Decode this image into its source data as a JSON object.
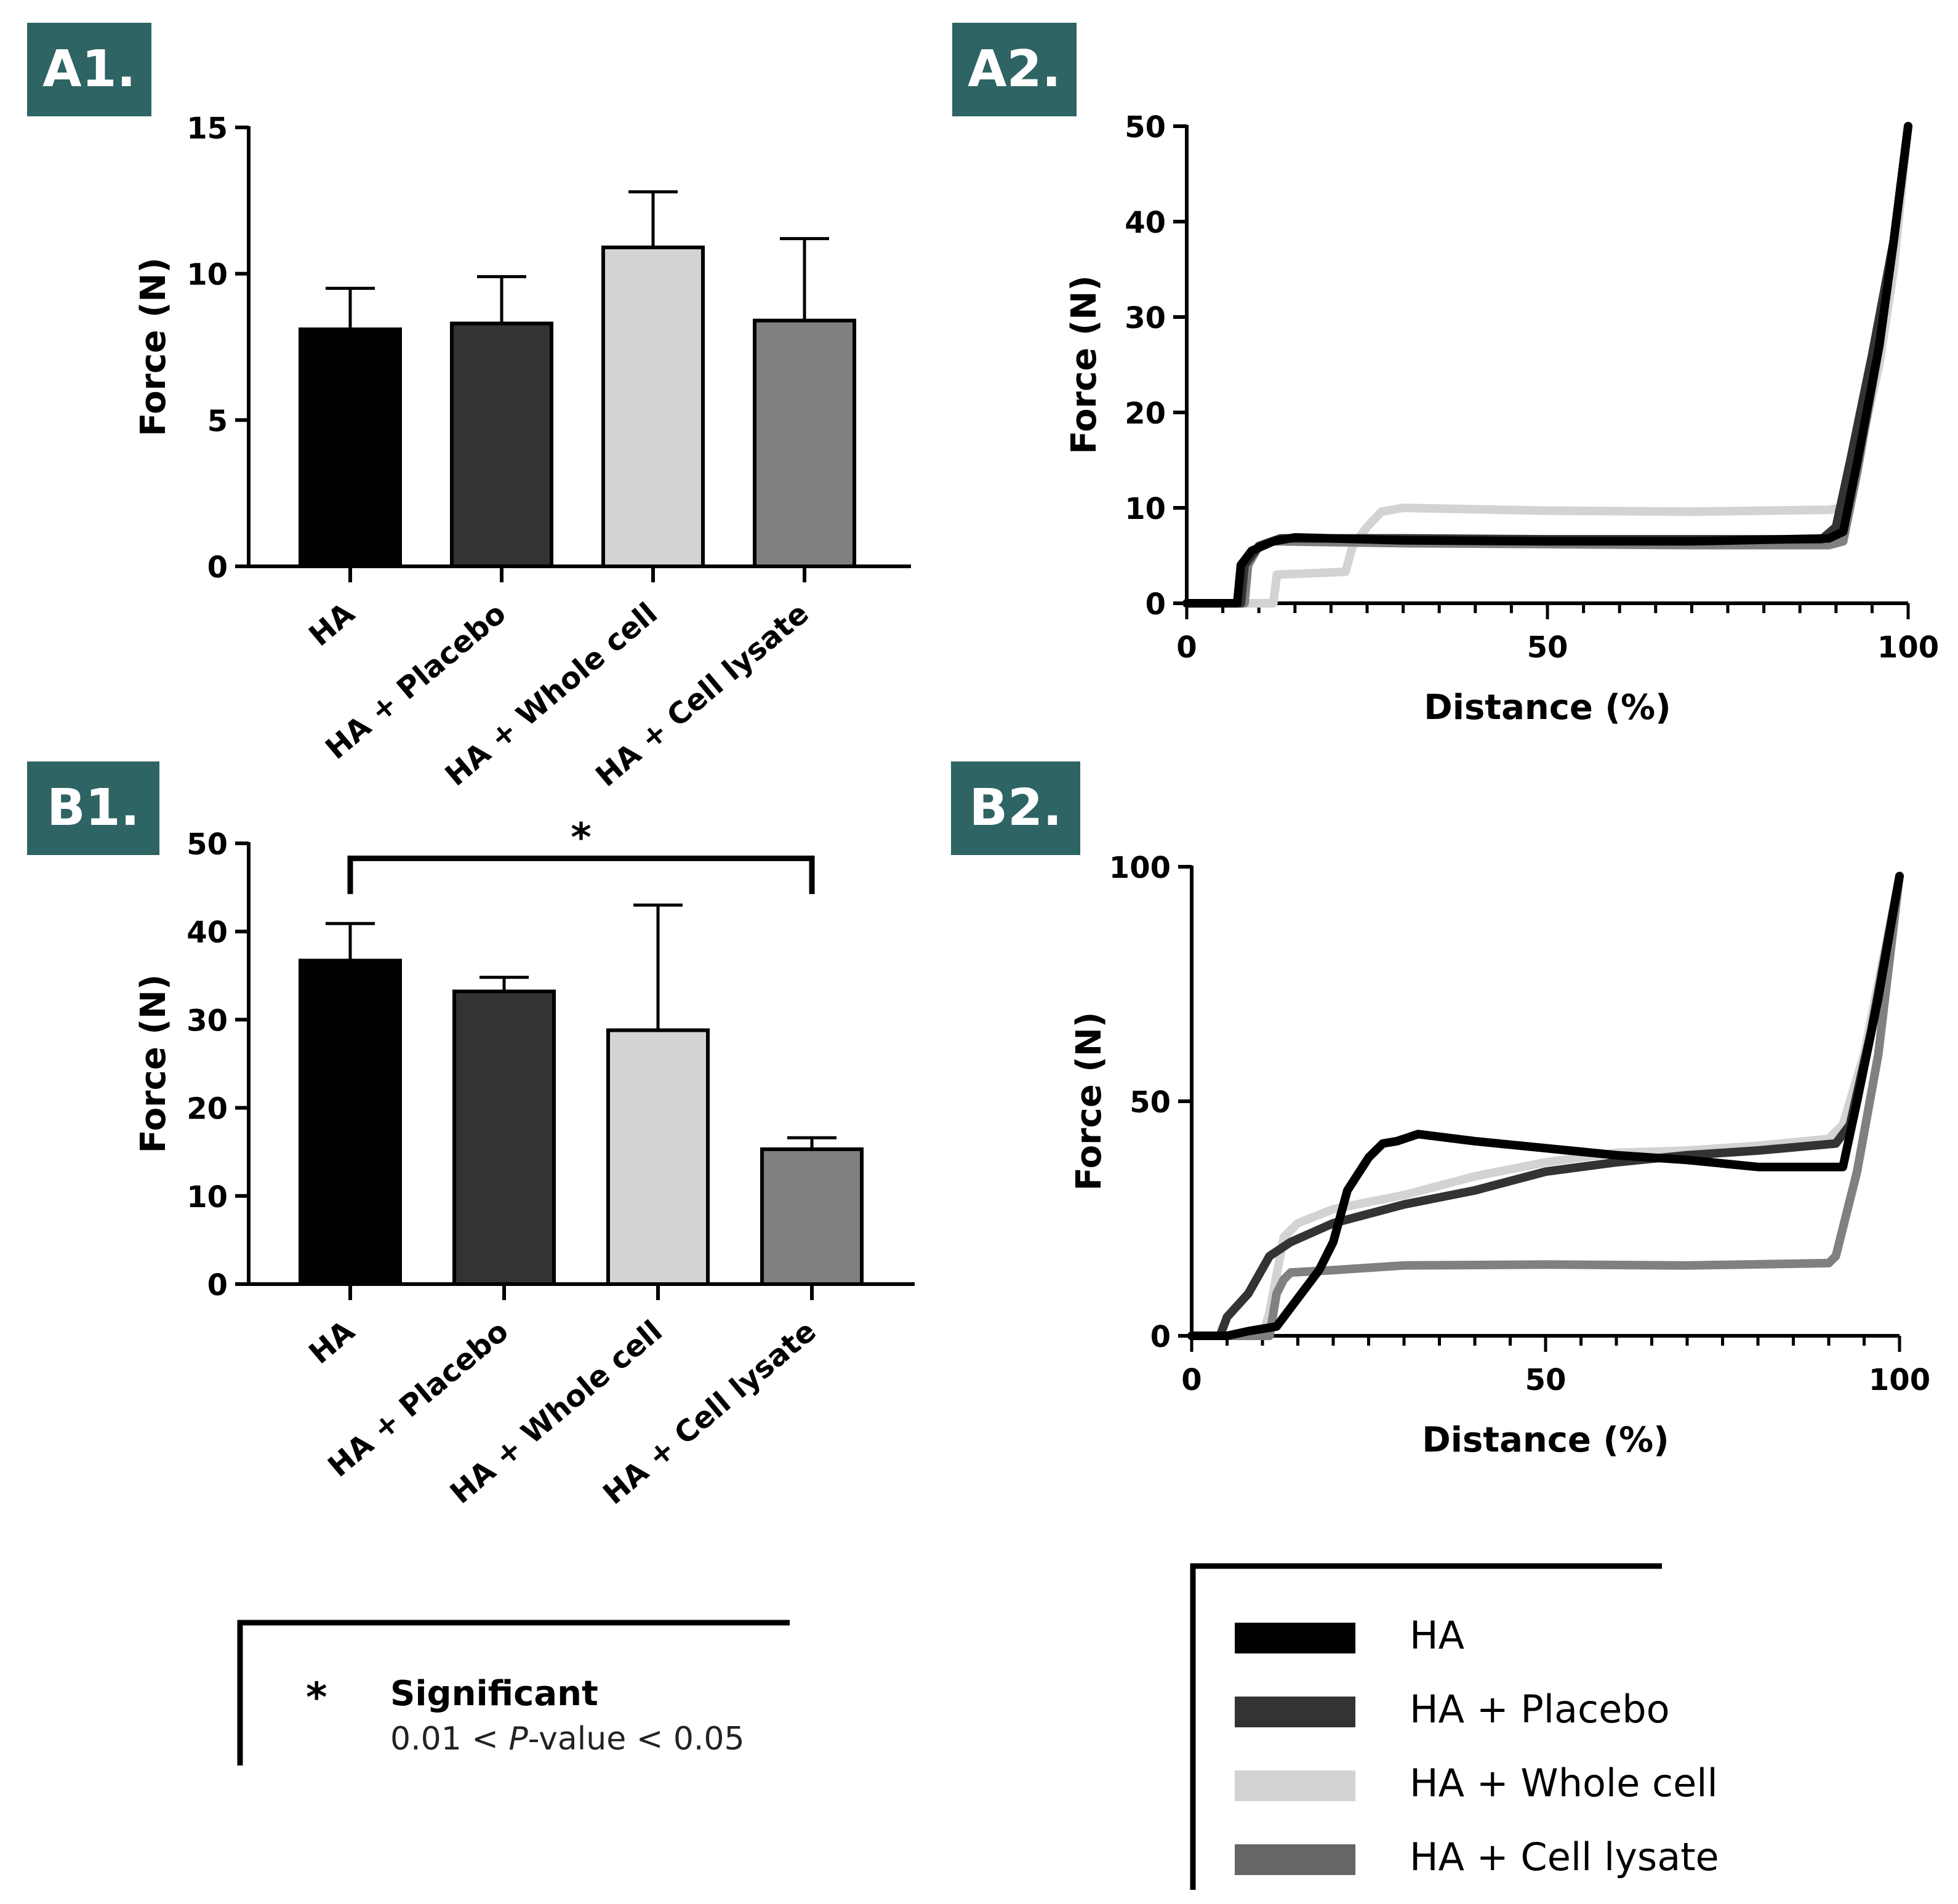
{
  "colors": {
    "tag_bg": "#2e6463",
    "HA": "#000000",
    "HA_placebo": "#333333",
    "HA_whole_cell": "#d3d3d3",
    "HA_cell_lysate": "#808080"
  },
  "panels": {
    "a1": {
      "tag": "A1."
    },
    "a2": {
      "tag": "A2."
    },
    "b1": {
      "tag": "B1."
    },
    "b2": {
      "tag": "B2."
    }
  },
  "chart_data": [
    {
      "id": "a1",
      "type": "bar",
      "title": "",
      "ylabel": "Force (N)",
      "xlabel": "",
      "ylim": [
        0,
        15
      ],
      "yticks": [
        0,
        5,
        10,
        15
      ],
      "categories": [
        "HA",
        "HA + Placebo",
        "HA + Whole cell",
        "HA + Cell lysate"
      ],
      "values": [
        8.1,
        8.3,
        10.9,
        8.4
      ],
      "errors": [
        1.4,
        1.6,
        1.9,
        2.8
      ],
      "bar_colors": [
        "#000000",
        "#333333",
        "#d3d3d3",
        "#808080"
      ]
    },
    {
      "id": "a2",
      "type": "line",
      "xlabel": "Distance (%)",
      "ylabel": "Force (N)",
      "xlim": [
        0,
        100
      ],
      "ylim": [
        0,
        50
      ],
      "xticks": [
        0,
        50,
        100
      ],
      "yticks": [
        0,
        10,
        20,
        30,
        40,
        50
      ],
      "series": [
        {
          "name": "HA + Whole cell",
          "color": "#d3d3d3",
          "points": [
            [
              0,
              0
            ],
            [
              12,
              0
            ],
            [
              12.5,
              3
            ],
            [
              22,
              3.3
            ],
            [
              23,
              6
            ],
            [
              25,
              8
            ],
            [
              27,
              9.6
            ],
            [
              30,
              10
            ],
            [
              50,
              9.7
            ],
            [
              70,
              9.6
            ],
            [
              89,
              9.8
            ],
            [
              91,
              10
            ],
            [
              93,
              15
            ],
            [
              96,
              25
            ],
            [
              98,
              35
            ],
            [
              100,
              50
            ]
          ]
        },
        {
          "name": "HA + Cell lysate",
          "color": "#808080",
          "points": [
            [
              0,
              0
            ],
            [
              8,
              0
            ],
            [
              8.5,
              4
            ],
            [
              10,
              6
            ],
            [
              12,
              6.5
            ],
            [
              30,
              6.3
            ],
            [
              50,
              6.2
            ],
            [
              70,
              6.1
            ],
            [
              89,
              6.1
            ],
            [
              91,
              6.5
            ],
            [
              93,
              14
            ],
            [
              96,
              27
            ],
            [
              98,
              38
            ],
            [
              100,
              50
            ]
          ]
        },
        {
          "name": "HA + Placebo",
          "color": "#333333",
          "points": [
            [
              0,
              0
            ],
            [
              7.5,
              0
            ],
            [
              8,
              4
            ],
            [
              10,
              6
            ],
            [
              13,
              6.8
            ],
            [
              30,
              6.8
            ],
            [
              50,
              6.7
            ],
            [
              70,
              6.7
            ],
            [
              88,
              6.7
            ],
            [
              90,
              8
            ],
            [
              92,
              15
            ],
            [
              95,
              26
            ],
            [
              98,
              38
            ],
            [
              100,
              50
            ]
          ]
        },
        {
          "name": "HA",
          "color": "#000000",
          "points": [
            [
              0,
              0
            ],
            [
              7,
              0
            ],
            [
              7.5,
              4
            ],
            [
              9,
              5.5
            ],
            [
              12,
              6.5
            ],
            [
              15,
              6.9
            ],
            [
              30,
              6.6
            ],
            [
              50,
              6.5
            ],
            [
              70,
              6.5
            ],
            [
              89,
              6.8
            ],
            [
              91,
              7.5
            ],
            [
              93,
              15
            ],
            [
              96,
              27
            ],
            [
              98,
              38
            ],
            [
              100,
              50
            ]
          ]
        }
      ]
    },
    {
      "id": "b1",
      "type": "bar",
      "title": "",
      "ylabel": "Force (N)",
      "xlabel": "",
      "ylim": [
        0,
        50
      ],
      "yticks": [
        0,
        10,
        20,
        30,
        40,
        50
      ],
      "categories": [
        "HA",
        "HA + Placebo",
        "HA + Whole cell",
        "HA + Cell lysate"
      ],
      "values": [
        36.7,
        33.2,
        28.8,
        15.3
      ],
      "errors": [
        4.2,
        1.6,
        14.2,
        1.3
      ],
      "bar_colors": [
        "#000000",
        "#333333",
        "#d3d3d3",
        "#808080"
      ],
      "significance": {
        "from": 0,
        "to": 3,
        "label": "*",
        "at": 48.3
      }
    },
    {
      "id": "b2",
      "type": "line",
      "xlabel": "Distance (%)",
      "ylabel": "Force (N)",
      "xlim": [
        0,
        100
      ],
      "ylim": [
        0,
        100
      ],
      "xticks": [
        0,
        50,
        100
      ],
      "yticks": [
        0,
        50,
        100
      ],
      "series": [
        {
          "name": "HA + Whole cell",
          "color": "#d3d3d3",
          "points": [
            [
              0,
              0
            ],
            [
              10,
              0
            ],
            [
              11,
              5
            ],
            [
              13,
              21
            ],
            [
              15,
              24
            ],
            [
              20,
              27
            ],
            [
              30,
              30
            ],
            [
              40,
              34
            ],
            [
              50,
              37
            ],
            [
              60,
              39
            ],
            [
              70,
              39.5
            ],
            [
              80,
              40.5
            ],
            [
              90,
              42
            ],
            [
              92,
              45
            ],
            [
              95,
              60
            ],
            [
              100,
              98
            ]
          ]
        },
        {
          "name": "HA + Placebo",
          "color": "#333333",
          "points": [
            [
              0,
              0
            ],
            [
              4,
              0
            ],
            [
              5,
              4
            ],
            [
              8,
              9
            ],
            [
              11,
              17
            ],
            [
              14,
              20
            ],
            [
              20,
              24
            ],
            [
              30,
              28
            ],
            [
              40,
              31
            ],
            [
              50,
              35
            ],
            [
              60,
              37
            ],
            [
              70,
              38.5
            ],
            [
              80,
              39.5
            ],
            [
              91,
              41
            ],
            [
              93,
              45
            ],
            [
              96,
              65
            ],
            [
              100,
              98
            ]
          ]
        },
        {
          "name": "HA + Cell lysate",
          "color": "#808080",
          "points": [
            [
              0,
              0
            ],
            [
              11,
              0
            ],
            [
              12,
              9
            ],
            [
              13,
              12
            ],
            [
              14,
              13.5
            ],
            [
              20,
              14
            ],
            [
              30,
              15
            ],
            [
              50,
              15.2
            ],
            [
              70,
              15
            ],
            [
              90,
              15.5
            ],
            [
              91,
              17
            ],
            [
              94,
              35
            ],
            [
              97,
              60
            ],
            [
              100,
              98
            ]
          ]
        },
        {
          "name": "HA",
          "color": "#000000",
          "points": [
            [
              0,
              0
            ],
            [
              5,
              0
            ],
            [
              8,
              1
            ],
            [
              12,
              2
            ],
            [
              15,
              8
            ],
            [
              18,
              14
            ],
            [
              20,
              20
            ],
            [
              22,
              31
            ],
            [
              25,
              38
            ],
            [
              27,
              41
            ],
            [
              29,
              41.5
            ],
            [
              32,
              43
            ],
            [
              40,
              41.5
            ],
            [
              50,
              40
            ],
            [
              60,
              38.5
            ],
            [
              70,
              37.5
            ],
            [
              80,
              36
            ],
            [
              92,
              36
            ],
            [
              94,
              50
            ],
            [
              97,
              72
            ],
            [
              100,
              98
            ]
          ]
        }
      ]
    }
  ],
  "legend_left": {
    "symbol": "*",
    "title": "Significant",
    "text_pre": "0.01 < ",
    "text_italic": "P",
    "text_post": "-value < 0.05"
  },
  "legend_right": {
    "items": [
      {
        "label": "HA",
        "color": "#000000"
      },
      {
        "label": "HA + Placebo",
        "color": "#333333"
      },
      {
        "label": "HA + Whole cell",
        "color": "#d3d3d3"
      },
      {
        "label": "HA + Cell lysate",
        "color": "#808080"
      }
    ]
  }
}
